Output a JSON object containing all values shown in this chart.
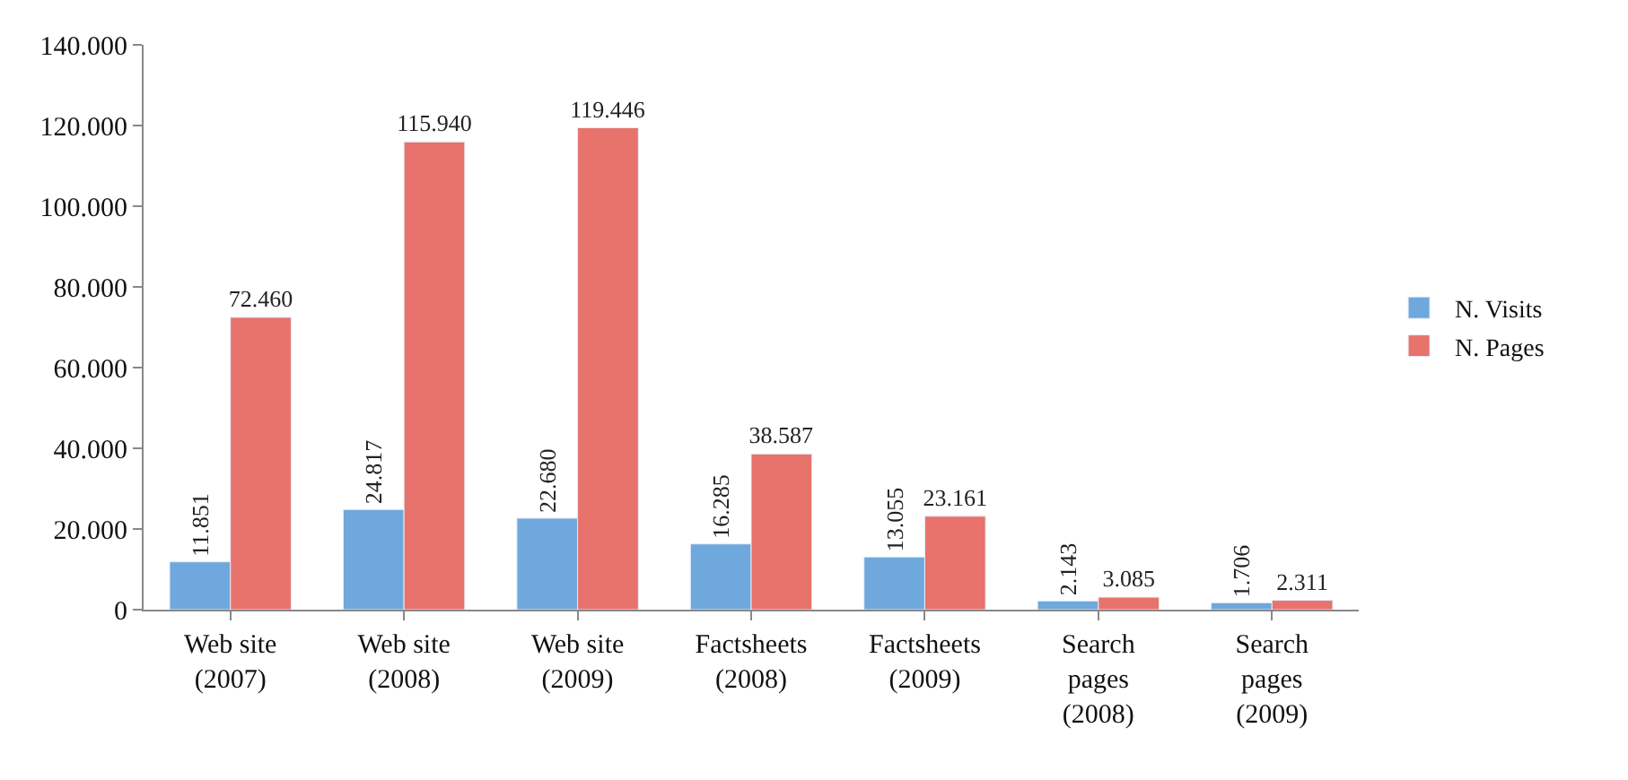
{
  "chart_data": {
    "type": "bar",
    "categories": [
      "Web site\n(2007)",
      "Web site\n(2008)",
      "Web site\n(2009)",
      "Factsheets\n(2008)",
      "Factsheets\n(2009)",
      "Search\npages\n(2008)",
      "Search\npages\n(2009)"
    ],
    "series": [
      {
        "name": "N. Visits",
        "color": "#6fa8dc",
        "values": [
          11851,
          24817,
          22680,
          16285,
          13055,
          2143,
          1706
        ],
        "value_labels": [
          "11.851",
          "24.817",
          "22.680",
          "16.285",
          "13.055",
          "2.143",
          "1.706"
        ]
      },
      {
        "name": "N. Pages",
        "color": "#e8726c",
        "values": [
          72460,
          115940,
          119446,
          38587,
          23161,
          3085,
          2311
        ],
        "value_labels": [
          "72.460",
          "115.940",
          "119.446",
          "38.587",
          "23.161",
          "3.085",
          "2.311"
        ]
      }
    ],
    "ylim": [
      0,
      140000
    ],
    "yticks": [
      {
        "value": 0,
        "label": "0"
      },
      {
        "value": 20000,
        "label": "20.000"
      },
      {
        "value": 40000,
        "label": "40.000"
      },
      {
        "value": 60000,
        "label": "60.000"
      },
      {
        "value": 80000,
        "label": "80.000"
      },
      {
        "value": 100000,
        "label": "100.000"
      },
      {
        "value": 120000,
        "label": "120.000"
      },
      {
        "value": 140000,
        "label": "140.000"
      }
    ],
    "legend": "right"
  }
}
